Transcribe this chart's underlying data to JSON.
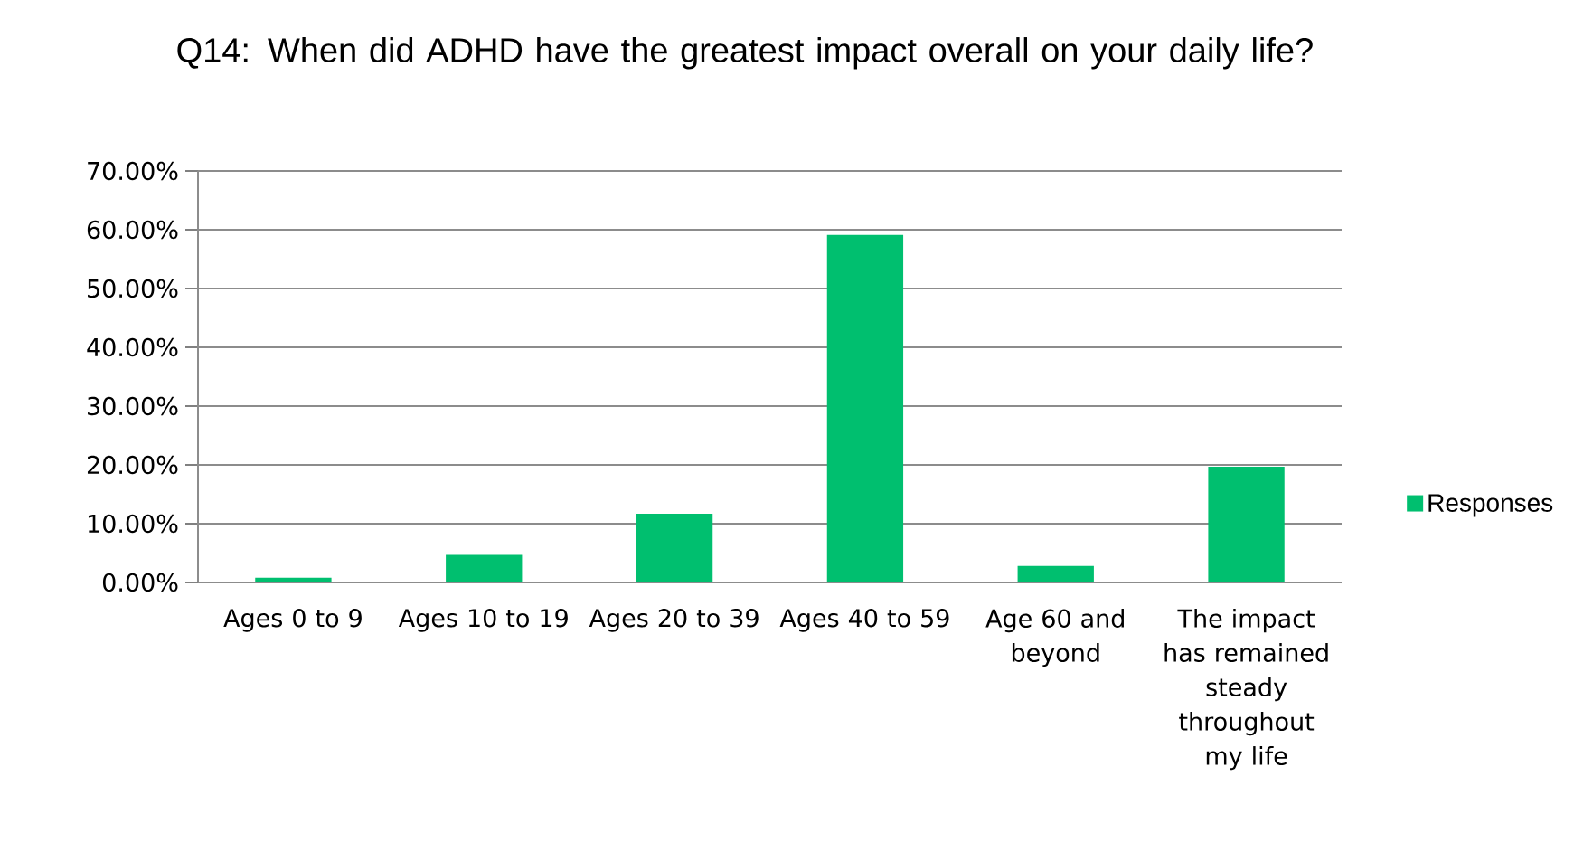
{
  "chart_data": {
    "type": "bar",
    "title": "Q14: When did ADHD have the greatest impact overall on your daily life?",
    "categories": [
      "Ages 0 to 9",
      "Ages 10 to 19",
      "Ages 20 to 39",
      "Ages 40 to 59",
      "Age 60 and beyond",
      "The impact has remained steady throughout my life"
    ],
    "series": [
      {
        "name": "Responses",
        "color": "#00bf6f",
        "values": [
          0.8,
          4.7,
          11.7,
          59.1,
          2.8,
          19.7
        ]
      }
    ],
    "ylim": [
      0,
      70
    ],
    "yticks": [
      {
        "value": 0,
        "label": "0.00%"
      },
      {
        "value": 10,
        "label": "10.00%"
      },
      {
        "value": 20,
        "label": "20.00%"
      },
      {
        "value": 30,
        "label": "30.00%"
      },
      {
        "value": 40,
        "label": "40.00%"
      },
      {
        "value": 50,
        "label": "50.00%"
      },
      {
        "value": 60,
        "label": "60.00%"
      },
      {
        "value": 70,
        "label": "70.00%"
      }
    ],
    "grid": "y",
    "legend": "right"
  }
}
